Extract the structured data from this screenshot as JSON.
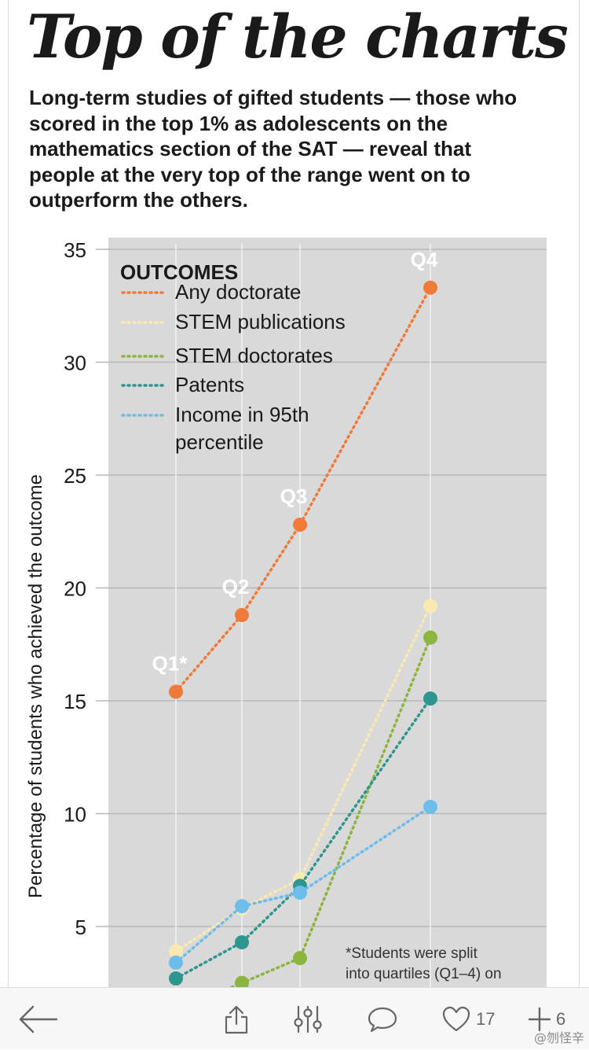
{
  "title": "Top of the charts",
  "subtitle": "Long-term studies of gifted students — those who scored in the top 1% as adolescents on the mathematics section of the SAT — reveal that people at the very top of the range went on to outperform the others.",
  "chart_data": {
    "type": "line",
    "categories": [
      "Q1*",
      "Q2",
      "Q3",
      "Q4"
    ],
    "ylabel": "Percentage of students who achieved the outcome",
    "ylim": [
      0,
      35
    ],
    "yticks": [
      5,
      10,
      15,
      20,
      25,
      30,
      35
    ],
    "grid": true,
    "legend_title": "OUTCOMES",
    "legend_position": "top-left",
    "series": [
      {
        "name": "Any doctorate",
        "color": "#ef7b3b",
        "values": [
          15.4,
          18.8,
          22.8,
          33.3
        ]
      },
      {
        "name": "STEM publications",
        "color": "#fbeab0",
        "values": [
          3.9,
          5.8,
          7.1,
          19.2
        ]
      },
      {
        "name": "STEM doctorates",
        "color": "#8bb53f",
        "values": [
          null,
          2.5,
          3.6,
          17.8
        ]
      },
      {
        "name": "Patents",
        "color": "#2e968e",
        "values": [
          2.7,
          4.3,
          6.8,
          15.1
        ]
      },
      {
        "name": "Income in 95th percentile",
        "color": "#6cbdea",
        "values": [
          3.4,
          5.9,
          6.5,
          10.3
        ]
      }
    ],
    "footnote": "*Students were split into quartiles (Q1–4) on"
  },
  "toolbar": {
    "like_count": "17",
    "add_count": "6",
    "watermark": "@刎怪辛"
  },
  "icons": [
    "back-arrow-icon",
    "share-icon",
    "adjust-icon",
    "comment-icon",
    "heart-icon",
    "plus-icon"
  ]
}
